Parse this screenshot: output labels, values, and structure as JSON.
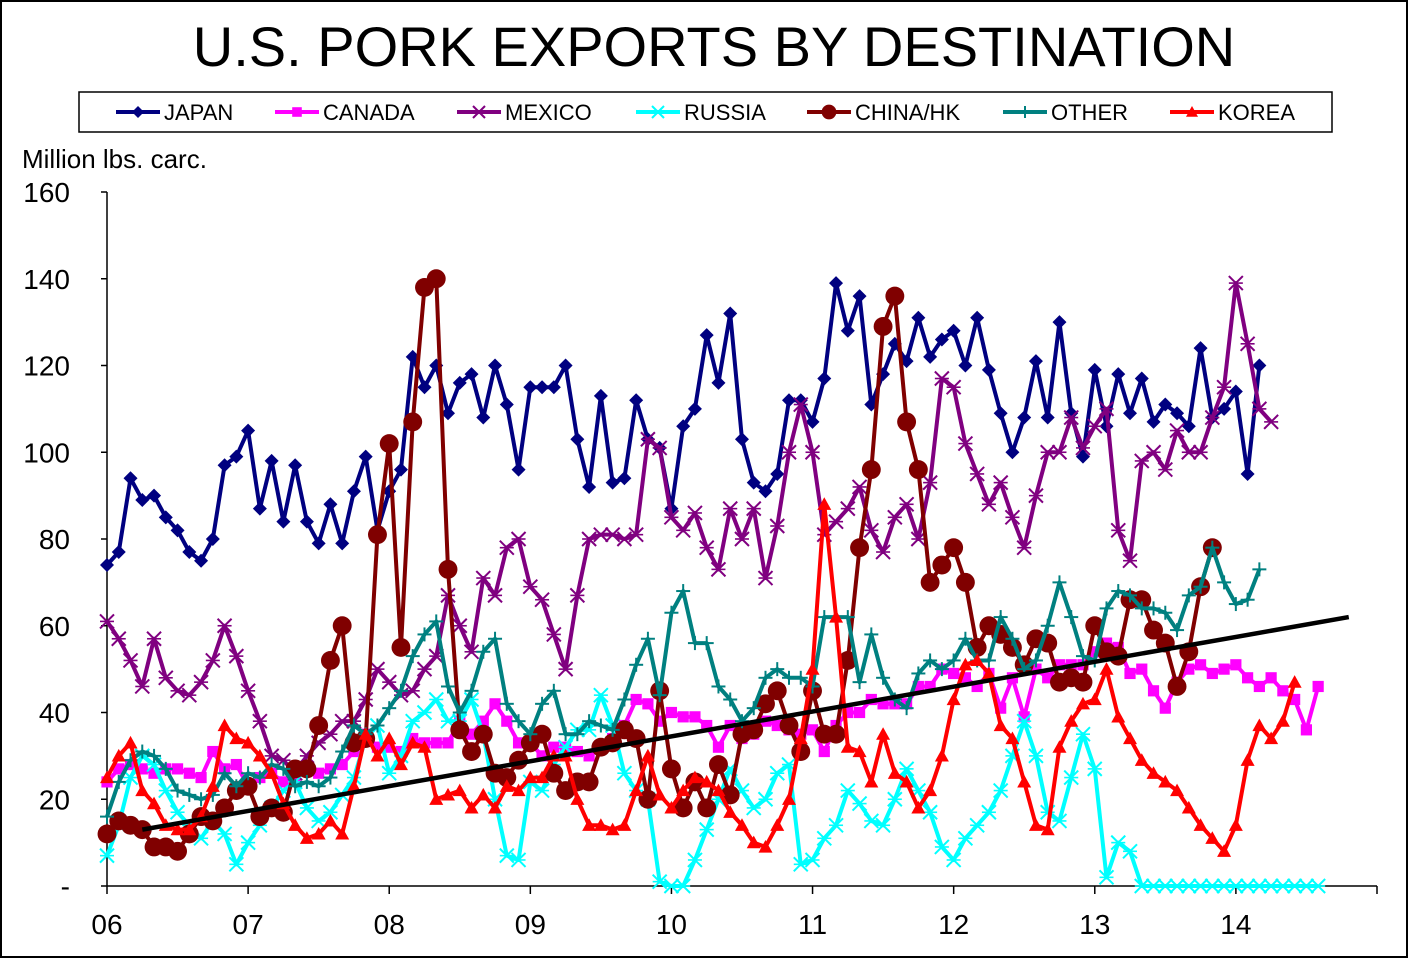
{
  "chart_data": {
    "type": "line",
    "title": "U.S. PORK EXPORTS BY DESTINATION",
    "ylabel": "Million lbs. carc.",
    "xlabel": "",
    "ylim": [
      0,
      160
    ],
    "xlim": [
      6,
      15
    ],
    "y_ticks": [
      {
        "value": 0,
        "label": "-"
      },
      {
        "value": 20,
        "label": "20"
      },
      {
        "value": 40,
        "label": "40"
      },
      {
        "value": 60,
        "label": "60"
      },
      {
        "value": 80,
        "label": "80"
      },
      {
        "value": 100,
        "label": "100"
      },
      {
        "value": 120,
        "label": "120"
      },
      {
        "value": 140,
        "label": "140"
      },
      {
        "value": 160,
        "label": "160"
      }
    ],
    "x_ticks": [
      {
        "value": 6,
        "label": "06"
      },
      {
        "value": 7,
        "label": "07"
      },
      {
        "value": 8,
        "label": "08"
      },
      {
        "value": 9,
        "label": "09"
      },
      {
        "value": 10,
        "label": "10"
      },
      {
        "value": 11,
        "label": "11"
      },
      {
        "value": 12,
        "label": "12"
      },
      {
        "value": 13,
        "label": "13"
      },
      {
        "value": 14,
        "label": "14"
      }
    ],
    "grid": false,
    "legend_position": "top",
    "x_start": 2006.0,
    "x_step": 0.08333,
    "series": [
      {
        "name": "JAPAN",
        "color": "#000080",
        "marker": "diamond",
        "values": [
          74,
          77,
          94,
          89,
          90,
          85,
          82,
          77,
          75,
          80,
          97,
          99,
          105,
          87,
          98,
          84,
          97,
          84,
          79,
          88,
          79,
          91,
          99,
          82,
          91,
          96,
          122,
          115,
          120,
          109,
          116,
          118,
          108,
          120,
          111,
          96,
          115,
          115,
          115,
          120,
          103,
          92,
          113,
          93,
          94,
          112,
          103,
          101,
          87,
          106,
          110,
          127,
          116,
          132,
          103,
          93,
          91,
          95,
          112,
          112,
          107,
          117,
          139,
          128,
          136,
          111,
          118,
          125,
          121,
          131,
          122,
          126,
          128,
          120,
          131,
          119,
          109,
          100,
          108,
          121,
          108,
          130,
          109,
          99,
          119,
          106,
          118,
          109,
          117,
          107,
          111,
          109,
          106,
          124,
          108,
          110,
          114,
          95,
          120
        ]
      },
      {
        "name": "CANADA",
        "color": "#ff00ff",
        "marker": "square",
        "values": [
          24,
          27,
          28,
          27,
          26,
          27,
          27,
          26,
          25,
          31,
          27,
          28,
          23,
          25,
          26,
          24,
          25,
          27,
          26,
          27,
          28,
          31,
          35,
          32,
          32,
          31,
          34,
          33,
          33,
          33,
          38,
          35,
          38,
          42,
          38,
          33,
          33,
          30,
          32,
          32,
          31,
          30,
          32,
          34,
          37,
          43,
          42,
          38,
          40,
          39,
          39,
          37,
          32,
          37,
          34,
          35,
          38,
          37,
          36,
          35,
          36,
          31,
          37,
          40,
          40,
          43,
          42,
          42,
          42,
          46,
          46,
          50,
          49,
          48,
          46,
          49,
          41,
          48,
          39,
          50,
          48,
          51,
          51,
          51,
          54,
          56,
          55,
          49,
          50,
          45,
          41,
          47,
          50,
          51,
          49,
          50,
          51,
          48,
          46,
          48,
          45,
          43,
          36,
          46
        ]
      },
      {
        "name": "MEXICO",
        "color": "#800080",
        "marker": "x",
        "values": [
          61,
          57,
          52,
          46,
          57,
          48,
          45,
          44,
          47,
          52,
          60,
          53,
          45,
          38,
          30,
          29,
          26,
          30,
          33,
          35,
          38,
          38,
          43,
          50,
          47,
          44,
          45,
          50,
          53,
          67,
          60,
          54,
          71,
          67,
          78,
          80,
          69,
          66,
          58,
          50,
          67,
          80,
          81,
          81,
          80,
          81,
          103,
          101,
          85,
          82,
          86,
          78,
          73,
          87,
          80,
          87,
          71,
          83,
          100,
          111,
          100,
          81,
          84,
          87,
          92,
          82,
          77,
          85,
          88,
          80,
          93,
          117,
          115,
          102,
          95,
          88,
          93,
          85,
          78,
          90,
          100,
          100,
          108,
          101,
          106,
          110,
          82,
          75,
          98,
          100,
          96,
          105,
          100,
          100,
          108,
          115,
          139,
          125,
          110,
          107
        ]
      },
      {
        "name": "RUSSIA",
        "color": "#00ffff",
        "marker": "x",
        "values": [
          7,
          14,
          25,
          30,
          28,
          22,
          17,
          14,
          11,
          15,
          12,
          5,
          10,
          14,
          18,
          22,
          24,
          18,
          15,
          17,
          21,
          25,
          34,
          37,
          26,
          30,
          38,
          40,
          43,
          38,
          38,
          43,
          35,
          20,
          7,
          6,
          24,
          22,
          28,
          32,
          36,
          36,
          44,
          37,
          26,
          22,
          20,
          1,
          0,
          0,
          6,
          13,
          20,
          27,
          22,
          18,
          20,
          26,
          28,
          5,
          6,
          11,
          14,
          22,
          19,
          15,
          14,
          20,
          27,
          22,
          17,
          9,
          6,
          11,
          14,
          17,
          22,
          30,
          38,
          30,
          17,
          15,
          25,
          35,
          27,
          2,
          10,
          8,
          0,
          0,
          0,
          0,
          0,
          0,
          0,
          0,
          0,
          0,
          0,
          0,
          0,
          0,
          0,
          0
        ]
      },
      {
        "name": "CHINA/HK",
        "color": "#800000",
        "marker": "circle",
        "values": [
          12,
          15,
          14,
          13,
          9,
          9,
          8,
          12,
          16,
          15,
          18,
          22,
          23,
          16,
          18,
          17,
          27,
          27,
          37,
          52,
          60,
          33,
          34,
          81,
          102,
          55,
          107,
          138,
          140,
          73,
          36,
          31,
          35,
          26,
          25,
          29,
          33,
          35,
          26,
          22,
          24,
          24,
          32,
          33,
          36,
          34,
          20,
          45,
          27,
          18,
          24,
          18,
          28,
          21,
          35,
          36,
          42,
          45,
          37,
          31,
          45,
          35,
          35,
          52,
          78,
          96,
          129,
          136,
          107,
          96,
          70,
          74,
          78,
          70,
          55,
          60,
          58,
          55,
          51,
          57,
          56,
          47,
          48,
          47,
          60,
          54,
          53,
          66,
          66,
          59,
          56,
          46,
          54,
          69,
          78
        ]
      },
      {
        "name": "OTHER",
        "color": "#008080",
        "marker": "plus",
        "values": [
          16,
          24,
          29,
          31,
          30,
          27,
          22,
          21,
          20,
          21,
          26,
          23,
          26,
          25,
          28,
          27,
          23,
          24,
          23,
          25,
          31,
          37,
          35,
          37,
          41,
          45,
          53,
          58,
          61,
          46,
          40,
          45,
          54,
          57,
          42,
          38,
          35,
          42,
          45,
          35,
          35,
          38,
          37,
          36,
          43,
          51,
          57,
          44,
          63,
          68,
          56,
          56,
          46,
          43,
          38,
          41,
          48,
          50,
          48,
          48,
          46,
          62,
          62,
          62,
          47,
          58,
          48,
          43,
          41,
          49,
          52,
          50,
          52,
          57,
          52,
          52,
          62,
          57,
          50,
          52,
          60,
          70,
          62,
          53,
          52,
          64,
          68,
          67,
          64,
          64,
          63,
          59,
          67,
          69,
          78,
          70,
          65,
          66,
          73
        ]
      },
      {
        "name": "KOREA",
        "color": "#ff0000",
        "marker": "triangle",
        "values": [
          25,
          30,
          33,
          22,
          19,
          14,
          13,
          13,
          16,
          23,
          37,
          34,
          33,
          30,
          26,
          19,
          14,
          11,
          12,
          15,
          12,
          23,
          35,
          30,
          34,
          28,
          33,
          32,
          20,
          21,
          22,
          18,
          21,
          18,
          23,
          22,
          25,
          25,
          30,
          30,
          20,
          14,
          14,
          13,
          14,
          22,
          30,
          21,
          18,
          22,
          25,
          24,
          22,
          17,
          14,
          10,
          9,
          14,
          20,
          34,
          50,
          88,
          62,
          32,
          31,
          24,
          35,
          26,
          24,
          18,
          22,
          30,
          43,
          51,
          52,
          49,
          37,
          34,
          24,
          14,
          13,
          32,
          38,
          42,
          43,
          50,
          39,
          34,
          29,
          26,
          24,
          22,
          18,
          14,
          11,
          8,
          14,
          29,
          37,
          34,
          38,
          47
        ]
      }
    ],
    "trendline": {
      "color": "#000000",
      "from": [
        2006.25,
        13
      ],
      "to": [
        2014.8,
        62
      ]
    }
  }
}
